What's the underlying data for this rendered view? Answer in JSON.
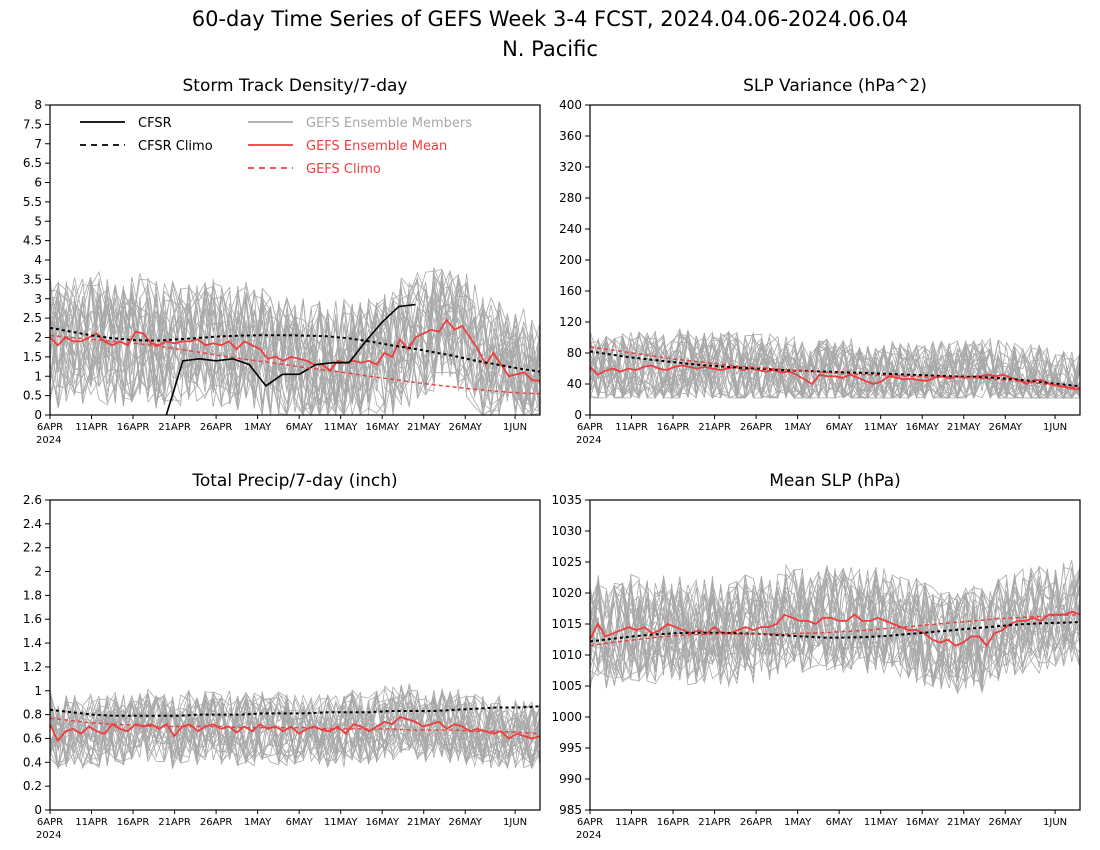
{
  "title": "60-day Time Series of GEFS Week 3-4 FCST, 2024.04.06-2024.06.04",
  "subtitle": "N. Pacific",
  "x_ticks": [
    "6APR",
    "11APR",
    "16APR",
    "21APR",
    "26APR",
    "1MAY",
    "6MAY",
    "11MAY",
    "16MAY",
    "21MAY",
    "26MAY",
    "1JUN"
  ],
  "x_year_label": "2024",
  "legend": [
    {
      "label": "CFSR",
      "color": "#000000",
      "dashed": false
    },
    {
      "label": "CFSR Climo",
      "color": "#000000",
      "dashed": true
    },
    {
      "label": "GEFS Ensemble Members",
      "color": "#a8a8a8",
      "dashed": false
    },
    {
      "label": "GEFS Ensemble Mean",
      "color": "#f03c3c",
      "dashed": false
    },
    {
      "label": "GEFS Climo",
      "color": "#f03c3c",
      "dashed": true
    }
  ],
  "colors": {
    "members": "#a8a8a8",
    "mean": "#f03c3c",
    "climo_gefs": "#f03c3c",
    "cfsr": "#000000"
  },
  "chart_data": [
    {
      "type": "line",
      "title": "Storm Track Density/7-day",
      "xlabel": "",
      "ylabel": "",
      "x_range": [
        "2024-04-06",
        "2024-06-04"
      ],
      "ylim": [
        0,
        8
      ],
      "y_ticks": [
        "0",
        "0.5",
        "1",
        "1.5",
        "2",
        "2.5",
        "3",
        "3.5",
        "4",
        "4.5",
        "5",
        "5.5",
        "6",
        "6.5",
        "7",
        "7.5",
        "8"
      ],
      "legend": "top-left",
      "members": {
        "count": 30,
        "low": 0.0,
        "high": 4.6
      },
      "series": [
        {
          "name": "GEFS Ensemble Mean",
          "values": [
            2.0,
            1.8,
            2.0,
            1.9,
            1.9,
            2.0,
            2.1,
            1.9,
            1.8,
            1.9,
            1.8,
            2.15,
            2.1,
            1.85,
            1.8,
            1.9,
            1.85,
            1.9,
            1.9,
            1.95,
            1.8,
            1.85,
            1.8,
            1.9,
            1.7,
            1.9,
            1.8,
            1.7,
            1.45,
            1.5,
            1.4,
            1.5,
            1.45,
            1.4,
            1.3,
            1.3,
            1.15,
            1.4,
            1.35,
            1.4,
            1.35,
            1.4,
            1.3,
            1.6,
            1.5,
            1.95,
            1.7,
            2.0,
            2.1,
            2.2,
            2.15,
            2.45,
            2.2,
            2.3,
            2.0,
            1.7,
            1.3,
            1.6,
            1.3,
            1.0,
            1.05,
            1.1,
            0.9,
            0.88
          ]
        },
        {
          "name": "CFSR",
          "x_start": "2024-04-20",
          "values": [
            0.0,
            1.4,
            1.45,
            1.4,
            1.45,
            1.3,
            0.75,
            1.05,
            1.05,
            1.3,
            1.35,
            1.35,
            1.9,
            2.4,
            2.8,
            2.85
          ]
        },
        {
          "name": "CFSR Climo",
          "values": [
            2.25,
            2.15,
            2.05,
            1.98,
            1.93,
            1.92,
            1.95,
            1.99,
            2.03,
            2.05,
            2.06,
            2.06,
            2.05,
            2.03,
            1.98,
            1.9,
            1.8,
            1.72,
            1.62,
            1.52,
            1.4,
            1.3,
            1.2,
            1.12
          ]
        },
        {
          "name": "GEFS Climo",
          "values": [
            2.05,
            2.0,
            1.95,
            1.9,
            1.85,
            1.78,
            1.7,
            1.62,
            1.53,
            1.45,
            1.38,
            1.3,
            1.22,
            1.15,
            1.08,
            1.0,
            0.93,
            0.85,
            0.78,
            0.72,
            0.66,
            0.61,
            0.57,
            0.55
          ]
        }
      ]
    },
    {
      "type": "line",
      "title": "SLP Variance (hPa^2)",
      "xlabel": "",
      "ylabel": "",
      "x_range": [
        "2024-04-06",
        "2024-06-04"
      ],
      "ylim": [
        0,
        400
      ],
      "y_ticks": [
        "0",
        "40",
        "80",
        "120",
        "160",
        "200",
        "240",
        "280",
        "320",
        "360",
        "400"
      ],
      "members": {
        "count": 30,
        "low": 22,
        "high": 155
      },
      "series": [
        {
          "name": "GEFS Ensemble Mean",
          "values": [
            62,
            52,
            57,
            60,
            56,
            60,
            58,
            62,
            64,
            60,
            58,
            62,
            64,
            62,
            60,
            62,
            60,
            58,
            60,
            62,
            58,
            60,
            58,
            56,
            58,
            55,
            56,
            52,
            46,
            40,
            52,
            50,
            50,
            48,
            52,
            48,
            44,
            40,
            43,
            50,
            48,
            46,
            47,
            45,
            44,
            48,
            50,
            47,
            50,
            48,
            50,
            50,
            52,
            50,
            52,
            48,
            45,
            40,
            45,
            45,
            40,
            38,
            36,
            34,
            33
          ]
        },
        {
          "name": "CFSR Climo",
          "values": [
            82,
            78,
            74,
            71,
            68,
            65,
            63,
            61,
            60,
            58,
            57,
            56,
            55,
            54,
            53,
            52,
            51,
            50,
            49,
            48,
            46,
            43,
            40,
            37
          ]
        },
        {
          "name": "GEFS Climo",
          "values": [
            88,
            84,
            80,
            76,
            72,
            69,
            66,
            63,
            61,
            59,
            57,
            55,
            53,
            52,
            51,
            50,
            49,
            49,
            48,
            46,
            44,
            41,
            38,
            35
          ]
        }
      ]
    },
    {
      "type": "line",
      "title": "Total Precip/7-day (inch)",
      "xlabel": "",
      "ylabel": "",
      "x_range": [
        "2024-04-06",
        "2024-06-04"
      ],
      "ylim": [
        0,
        2.6
      ],
      "y_ticks": [
        "0",
        "0.2",
        "0.4",
        "0.6",
        "0.8",
        "1",
        "1.2",
        "1.4",
        "1.6",
        "1.8",
        "2",
        "2.2",
        "2.4",
        "2.6"
      ],
      "members": {
        "count": 30,
        "low": 0.35,
        "high": 1.2
      },
      "series": [
        {
          "name": "GEFS Ensemble Mean",
          "values": [
            0.72,
            0.58,
            0.66,
            0.68,
            0.64,
            0.7,
            0.66,
            0.64,
            0.72,
            0.68,
            0.66,
            0.72,
            0.7,
            0.72,
            0.68,
            0.72,
            0.62,
            0.7,
            0.72,
            0.66,
            0.7,
            0.72,
            0.68,
            0.7,
            0.65,
            0.7,
            0.66,
            0.72,
            0.68,
            0.7,
            0.66,
            0.7,
            0.64,
            0.68,
            0.7,
            0.67,
            0.66,
            0.7,
            0.64,
            0.72,
            0.7,
            0.66,
            0.7,
            0.74,
            0.72,
            0.78,
            0.76,
            0.74,
            0.7,
            0.72,
            0.74,
            0.68,
            0.72,
            0.7,
            0.66,
            0.68,
            0.66,
            0.64,
            0.66,
            0.6,
            0.64,
            0.62,
            0.6,
            0.62
          ]
        },
        {
          "name": "CFSR Climo",
          "values": [
            0.84,
            0.82,
            0.8,
            0.79,
            0.79,
            0.79,
            0.79,
            0.8,
            0.8,
            0.8,
            0.81,
            0.81,
            0.81,
            0.82,
            0.82,
            0.82,
            0.83,
            0.83,
            0.83,
            0.84,
            0.85,
            0.86,
            0.86,
            0.87
          ]
        },
        {
          "name": "GEFS Climo",
          "values": [
            0.77,
            0.75,
            0.73,
            0.72,
            0.71,
            0.7,
            0.7,
            0.7,
            0.7,
            0.69,
            0.69,
            0.69,
            0.69,
            0.68,
            0.68,
            0.68,
            0.68,
            0.67,
            0.67,
            0.67,
            0.66,
            0.66,
            0.65,
            0.64
          ]
        }
      ]
    },
    {
      "type": "line",
      "title": "Mean SLP (hPa)",
      "xlabel": "",
      "ylabel": "",
      "x_range": [
        "2024-04-06",
        "2024-06-04"
      ],
      "ylim": [
        985,
        1035
      ],
      "y_ticks": [
        "985",
        "990",
        "995",
        "1000",
        "1005",
        "1010",
        "1015",
        "1020",
        "1025",
        "1030",
        "1035"
      ],
      "members": {
        "count": 30,
        "low": 1003,
        "high": 1027
      },
      "series": [
        {
          "name": "GEFS Ensemble Mean",
          "values": [
            1012.5,
            1015,
            1013,
            1013.5,
            1014,
            1014.5,
            1014,
            1014.5,
            1013.5,
            1014,
            1015,
            1014.5,
            1014,
            1013.5,
            1014,
            1013.5,
            1014.5,
            1013.5,
            1013.5,
            1014,
            1014.5,
            1014,
            1014.5,
            1014.5,
            1015,
            1016.5,
            1016,
            1015.5,
            1015.5,
            1015,
            1016,
            1016,
            1015.5,
            1015.5,
            1016.5,
            1015.5,
            1015.5,
            1016,
            1015.5,
            1015,
            1014.5,
            1014,
            1014,
            1013.5,
            1012.5,
            1012,
            1012.5,
            1011.5,
            1012,
            1013,
            1013,
            1011.5,
            1013.5,
            1014,
            1015,
            1015.5,
            1015.5,
            1016,
            1015.5,
            1016.5,
            1016.5,
            1016.5,
            1017,
            1016.5
          ]
        },
        {
          "name": "CFSR Climo",
          "values": [
            1012.2,
            1012.6,
            1013.0,
            1013.3,
            1013.5,
            1013.6,
            1013.6,
            1013.5,
            1013.4,
            1013.2,
            1013.0,
            1012.8,
            1012.8,
            1012.9,
            1013.1,
            1013.4,
            1013.7,
            1014.0,
            1014.3,
            1014.6,
            1014.9,
            1015.1,
            1015.2,
            1015.3
          ]
        },
        {
          "name": "GEFS Climo",
          "values": [
            1011.5,
            1012.0,
            1012.4,
            1012.8,
            1013.1,
            1013.3,
            1013.4,
            1013.4,
            1013.4,
            1013.4,
            1013.5,
            1013.6,
            1013.8,
            1014.0,
            1014.3,
            1014.6,
            1014.9,
            1015.2,
            1015.5,
            1015.8,
            1016.0,
            1016.2,
            1016.4,
            1016.5
          ]
        }
      ]
    }
  ]
}
